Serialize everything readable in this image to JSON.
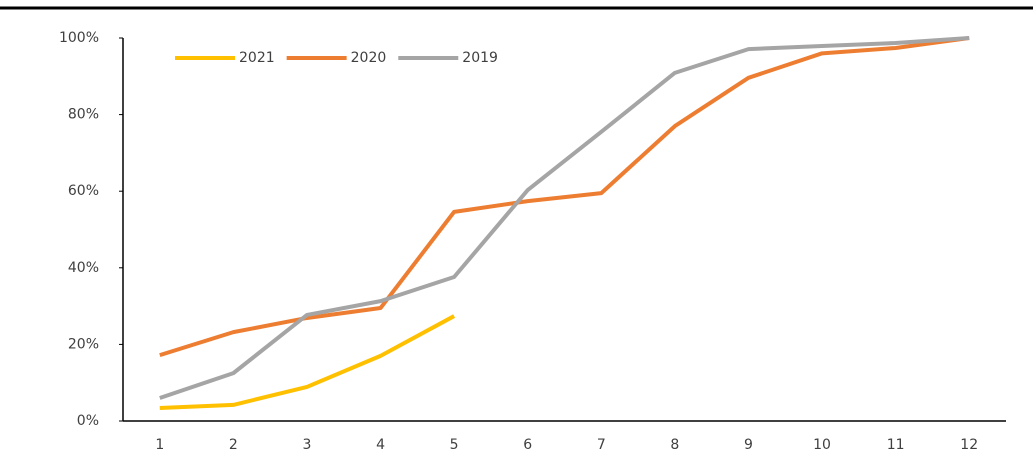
{
  "chart_data": {
    "type": "line",
    "categories": [
      "1",
      "2",
      "3",
      "4",
      "5",
      "6",
      "7",
      "8",
      "9",
      "10",
      "11",
      "12"
    ],
    "series": [
      {
        "name": "2021",
        "color": "#ffc000",
        "values": [
          3.4,
          4.2,
          8.9,
          17,
          27.4,
          null,
          null,
          null,
          null,
          null,
          null,
          null
        ]
      },
      {
        "name": "2020",
        "color": "#ed7d31",
        "values": [
          17.2,
          23.2,
          26.9,
          29.5,
          54.6,
          57.4,
          59.5,
          77,
          89.6,
          96,
          97.4,
          100
        ]
      },
      {
        "name": "2019",
        "color": "#a5a5a5",
        "values": [
          6,
          12.5,
          27.7,
          31.3,
          37.6,
          60.3,
          75.5,
          90.9,
          97.1,
          97.9,
          98.7,
          100
        ]
      }
    ],
    "ylim": [
      0,
      100
    ],
    "yticks": [
      {
        "value": 0,
        "label": "0%"
      },
      {
        "value": 20,
        "label": "20%"
      },
      {
        "value": 40,
        "label": "40%"
      },
      {
        "value": 60,
        "label": "60%"
      },
      {
        "value": 80,
        "label": "80%"
      },
      {
        "value": 100,
        "label": "100%"
      }
    ],
    "grid": false,
    "legend": "upper left"
  }
}
